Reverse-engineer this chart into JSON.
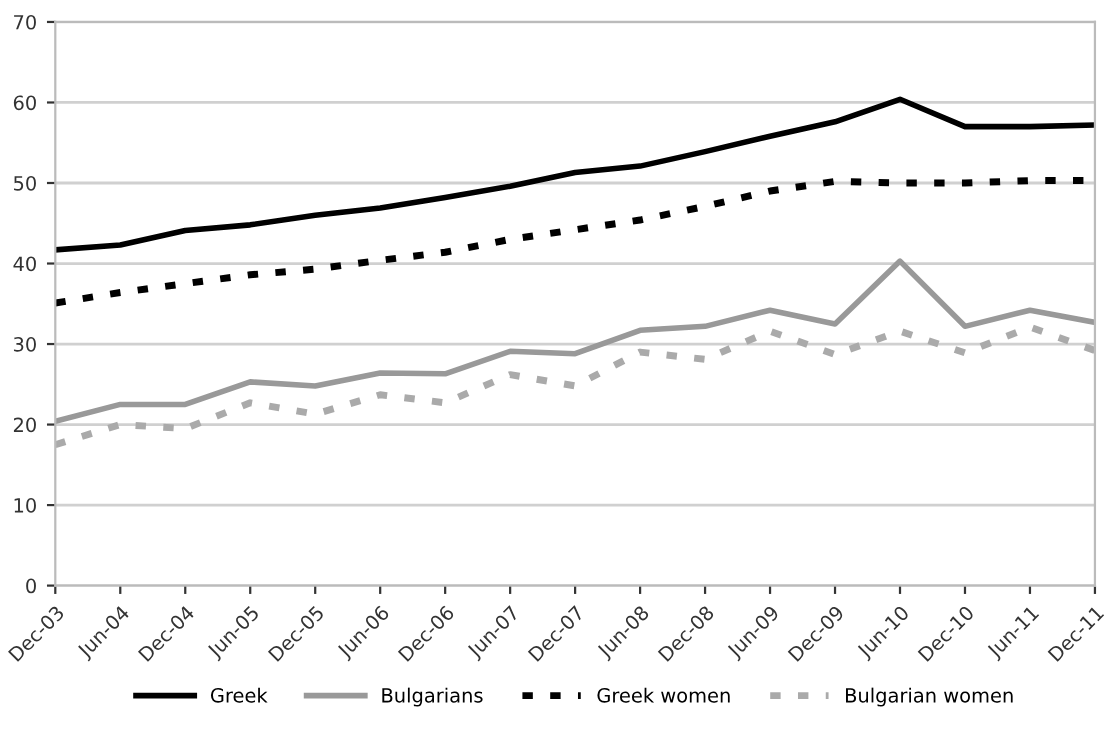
{
  "chart_data": {
    "type": "line",
    "categories": [
      "Dec-03",
      "Jun-04",
      "Dec-04",
      "Jun-05",
      "Dec-05",
      "Jun-06",
      "Dec-06",
      "Jun-07",
      "Dec-07",
      "Jun-08",
      "Dec-08",
      "Jun-09",
      "Dec-09",
      "Jun-10",
      "Dec-10",
      "Jun-11",
      "Dec-11"
    ],
    "ylim": [
      0,
      70
    ],
    "yticks": [
      0,
      10,
      20,
      30,
      40,
      50,
      60,
      70
    ],
    "grid": "y",
    "legend": "bottom",
    "marker": "none",
    "series": [
      {
        "name": "Greek",
        "color": "#000000",
        "line_style": "solid",
        "values": [
          41.7,
          42.3,
          44.1,
          44.8,
          46.0,
          46.9,
          48.2,
          49.6,
          51.3,
          52.1,
          53.9,
          55.8,
          57.6,
          60.4,
          57.0,
          57.0,
          57.2
        ]
      },
      {
        "name": "Bulgarians",
        "color": "#999999",
        "line_style": "solid",
        "values": [
          20.4,
          22.5,
          22.5,
          25.3,
          24.8,
          26.4,
          26.3,
          29.1,
          28.8,
          31.7,
          32.2,
          34.2,
          32.5,
          40.3,
          32.2,
          34.2,
          32.7
        ]
      },
      {
        "name": "Greek women",
        "color": "#000000",
        "line_style": "dotted",
        "values": [
          35.1,
          36.4,
          37.5,
          38.6,
          39.3,
          40.4,
          41.4,
          43.0,
          44.2,
          45.4,
          47.1,
          49.0,
          50.2,
          50.0,
          50.0,
          50.3,
          50.3
        ]
      },
      {
        "name": "Bulgarian women",
        "color": "#aaaaaa",
        "line_style": "dotted",
        "values": [
          17.5,
          20.0,
          19.5,
          22.7,
          21.3,
          23.7,
          22.7,
          26.2,
          24.8,
          29.0,
          28.1,
          31.6,
          28.7,
          31.6,
          28.9,
          32.1,
          29.2
        ]
      }
    ]
  }
}
